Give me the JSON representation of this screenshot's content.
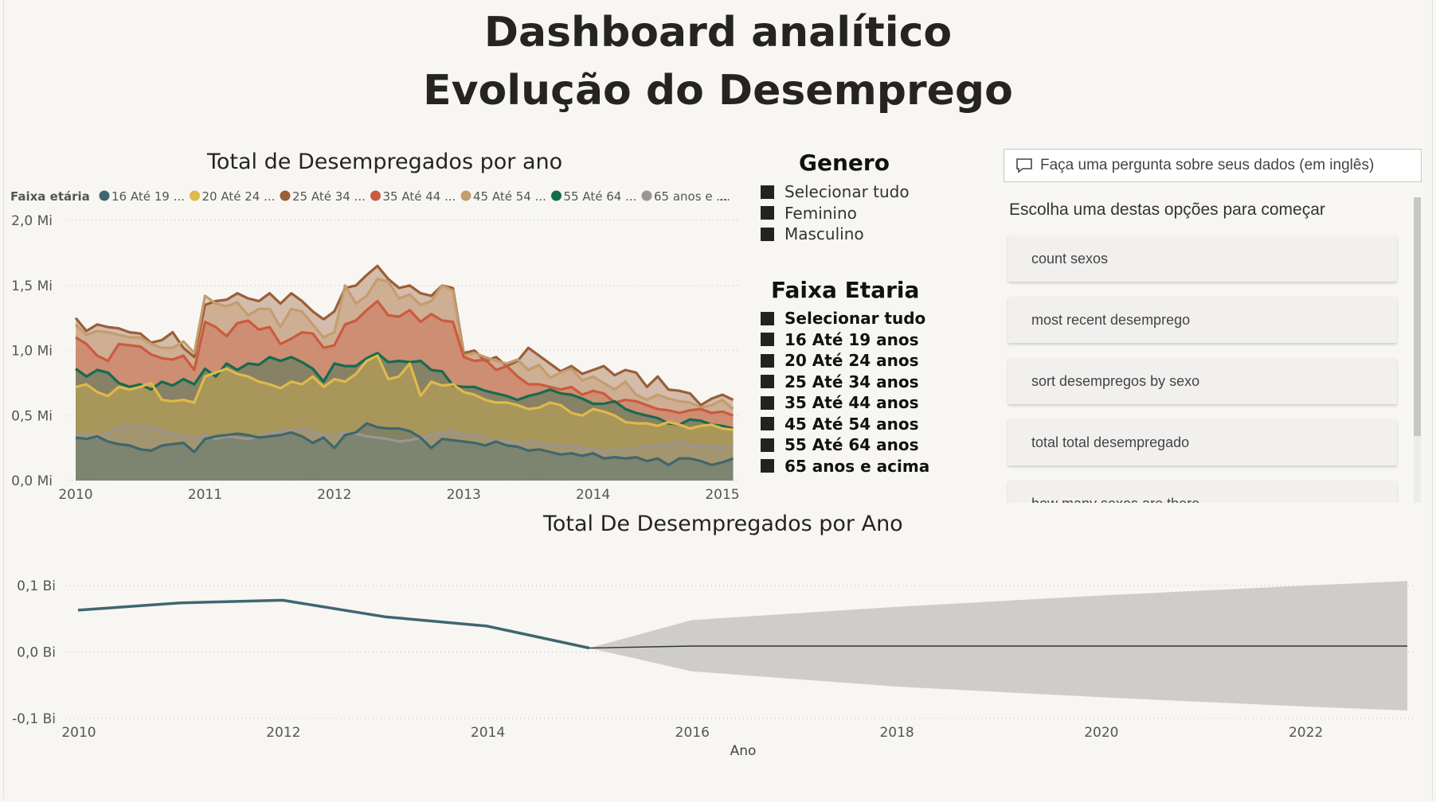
{
  "header": {
    "title_line1": "Dashboard analítico",
    "title_line2": "Evolução do Desemprego"
  },
  "colors": {
    "background": "#f7f6f2",
    "forecast_band": "#cfcdc9",
    "actual_line": "#3f6670"
  },
  "slicer_genero": {
    "title": "Genero",
    "items": [
      "Selecionar tudo",
      "Feminino",
      "Masculino"
    ]
  },
  "slicer_faixa": {
    "title": "Faixa Etaria",
    "items": [
      "Selecionar tudo",
      "16 Até 19 anos",
      "20 Até 24 anos",
      "25 Até 34 anos",
      "35 Até 44 anos",
      "45 Até 54 anos",
      "55 Até 64 anos",
      "65 anos e acima"
    ]
  },
  "qa": {
    "placeholder": "Faça uma pergunta sobre seus dados (em inglês)",
    "prompt": "Escolha uma destas opções para começar",
    "suggestions": [
      "count sexos",
      "most recent desemprego",
      "sort desempregos by sexo",
      "total total desempregado",
      "how many sexos are there"
    ]
  },
  "chart_data": [
    {
      "type": "area",
      "title": "Total de Desempregados por ano",
      "legend_title": "Faixa etária",
      "legend_position": "top",
      "xlabel": "",
      "ylabel": "",
      "xlim": [
        2010,
        2015
      ],
      "ylim": [
        0,
        2.0
      ],
      "y_ticks": [
        "0,0 Mi",
        "0,5 Mi",
        "1,0 Mi",
        "1,5 Mi",
        "2,0 Mi"
      ],
      "x_ticks": [
        "2010",
        "2011",
        "2012",
        "2013",
        "2014",
        "2015"
      ],
      "grid": true,
      "x": [
        2010.0,
        2010.083,
        2010.167,
        2010.25,
        2010.333,
        2010.417,
        2010.5,
        2010.583,
        2010.667,
        2010.75,
        2010.833,
        2010.917,
        2011.0,
        2011.083,
        2011.167,
        2011.25,
        2011.333,
        2011.417,
        2011.5,
        2011.583,
        2011.667,
        2011.75,
        2011.833,
        2011.917,
        2012.0,
        2012.083,
        2012.167,
        2012.25,
        2012.333,
        2012.417,
        2012.5,
        2012.583,
        2012.667,
        2012.75,
        2012.833,
        2012.917,
        2013.0,
        2013.083,
        2013.167,
        2013.25,
        2013.333,
        2013.417,
        2013.5,
        2013.583,
        2013.667,
        2013.75,
        2013.833,
        2013.917,
        2014.0,
        2014.083,
        2014.167,
        2014.25,
        2014.333,
        2014.417,
        2014.5,
        2014.583,
        2014.667,
        2014.75,
        2014.833,
        2014.917,
        2015.0,
        2015.083
      ],
      "series": [
        {
          "name": "16 Até 19 ...",
          "color": "#3f6670",
          "values": [
            0.33,
            0.32,
            0.34,
            0.3,
            0.28,
            0.27,
            0.24,
            0.23,
            0.27,
            0.28,
            0.29,
            0.22,
            0.32,
            0.34,
            0.35,
            0.36,
            0.35,
            0.33,
            0.34,
            0.35,
            0.37,
            0.34,
            0.29,
            0.33,
            0.25,
            0.35,
            0.37,
            0.44,
            0.41,
            0.4,
            0.4,
            0.38,
            0.33,
            0.25,
            0.32,
            0.31,
            0.3,
            0.29,
            0.27,
            0.3,
            0.27,
            0.26,
            0.23,
            0.24,
            0.22,
            0.2,
            0.21,
            0.19,
            0.21,
            0.17,
            0.18,
            0.17,
            0.18,
            0.15,
            0.17,
            0.12,
            0.17,
            0.17,
            0.15,
            0.12,
            0.14,
            0.17
          ]
        },
        {
          "name": "20 Até 24 ...",
          "color": "#e0b94a",
          "values": [
            0.72,
            0.74,
            0.68,
            0.65,
            0.72,
            0.7,
            0.72,
            0.75,
            0.62,
            0.61,
            0.62,
            0.6,
            0.8,
            0.83,
            0.86,
            0.82,
            0.8,
            0.76,
            0.74,
            0.71,
            0.76,
            0.74,
            0.8,
            0.72,
            0.78,
            0.76,
            0.82,
            0.92,
            0.96,
            0.78,
            0.8,
            0.9,
            0.65,
            0.76,
            0.73,
            0.74,
            0.68,
            0.66,
            0.62,
            0.6,
            0.6,
            0.58,
            0.55,
            0.56,
            0.6,
            0.58,
            0.52,
            0.5,
            0.55,
            0.53,
            0.5,
            0.45,
            0.44,
            0.44,
            0.42,
            0.45,
            0.43,
            0.4,
            0.42,
            0.43,
            0.4,
            0.39
          ]
        },
        {
          "name": "25 Até 34 ...",
          "color": "#9b5e37",
          "values": [
            1.25,
            1.15,
            1.2,
            1.18,
            1.17,
            1.14,
            1.13,
            1.06,
            1.08,
            1.14,
            1.02,
            0.95,
            1.35,
            1.38,
            1.39,
            1.44,
            1.4,
            1.38,
            1.44,
            1.36,
            1.44,
            1.38,
            1.3,
            1.24,
            1.3,
            1.48,
            1.5,
            1.58,
            1.65,
            1.55,
            1.48,
            1.5,
            1.44,
            1.42,
            1.5,
            1.48,
            0.98,
            1.0,
            0.92,
            0.95,
            0.88,
            0.92,
            1.02,
            0.96,
            0.9,
            0.84,
            0.88,
            0.82,
            0.85,
            0.88,
            0.81,
            0.85,
            0.83,
            0.72,
            0.8,
            0.7,
            0.69,
            0.67,
            0.58,
            0.63,
            0.66,
            0.62
          ]
        },
        {
          "name": "35 Até 44 ...",
          "color": "#cc5a3e",
          "values": [
            1.1,
            1.05,
            0.96,
            0.92,
            1.05,
            1.04,
            1.03,
            0.97,
            0.94,
            0.93,
            0.96,
            0.85,
            1.22,
            1.18,
            1.11,
            1.21,
            1.23,
            1.16,
            1.18,
            1.05,
            1.09,
            1.14,
            1.13,
            1.02,
            1.04,
            1.2,
            1.23,
            1.31,
            1.38,
            1.27,
            1.26,
            1.31,
            1.22,
            1.28,
            1.23,
            1.22,
            0.95,
            0.92,
            0.93,
            0.85,
            0.88,
            0.8,
            0.74,
            0.74,
            0.72,
            0.7,
            0.72,
            0.66,
            0.69,
            0.67,
            0.6,
            0.62,
            0.61,
            0.58,
            0.55,
            0.54,
            0.52,
            0.54,
            0.55,
            0.52,
            0.53,
            0.5
          ]
        },
        {
          "name": "45 Até 54 ...",
          "color": "#c49c6e",
          "values": [
            1.2,
            1.12,
            1.15,
            1.14,
            1.12,
            1.1,
            1.1,
            1.05,
            1.02,
            1.02,
            1.07,
            0.98,
            1.42,
            1.36,
            1.34,
            1.37,
            1.27,
            1.32,
            1.32,
            1.18,
            1.32,
            1.3,
            1.2,
            1.1,
            1.14,
            1.5,
            1.36,
            1.42,
            1.55,
            1.53,
            1.4,
            1.43,
            1.35,
            1.38,
            1.5,
            1.46,
            0.96,
            0.98,
            0.95,
            0.92,
            0.9,
            0.93,
            0.85,
            0.89,
            0.79,
            0.83,
            0.86,
            0.77,
            0.8,
            0.75,
            0.7,
            0.76,
            0.66,
            0.62,
            0.66,
            0.63,
            0.61,
            0.6,
            0.56,
            0.58,
            0.62,
            0.55
          ]
        },
        {
          "name": "55 Até 64 ...",
          "color": "#166b4f",
          "values": [
            0.86,
            0.8,
            0.85,
            0.83,
            0.75,
            0.72,
            0.74,
            0.7,
            0.76,
            0.73,
            0.78,
            0.74,
            0.86,
            0.8,
            0.9,
            0.85,
            0.9,
            0.89,
            0.95,
            0.92,
            0.95,
            0.91,
            0.86,
            0.76,
            0.9,
            0.88,
            0.88,
            0.94,
            0.98,
            0.91,
            0.92,
            0.91,
            0.92,
            0.85,
            0.84,
            0.73,
            0.72,
            0.72,
            0.69,
            0.67,
            0.65,
            0.62,
            0.65,
            0.67,
            0.7,
            0.67,
            0.66,
            0.63,
            0.59,
            0.59,
            0.61,
            0.55,
            0.52,
            0.5,
            0.48,
            0.44,
            0.43,
            0.47,
            0.46,
            0.43,
            0.42,
            0.4
          ]
        },
        {
          "name": "65 anos e ...",
          "color": "#9c9590",
          "values": [
            0.35,
            0.36,
            0.33,
            0.37,
            0.4,
            0.42,
            0.42,
            0.41,
            0.38,
            0.36,
            0.34,
            0.32,
            0.35,
            0.32,
            0.34,
            0.33,
            0.32,
            0.34,
            0.36,
            0.38,
            0.38,
            0.4,
            0.37,
            0.35,
            0.34,
            0.37,
            0.36,
            0.34,
            0.33,
            0.32,
            0.3,
            0.31,
            0.33,
            0.35,
            0.37,
            0.38,
            0.36,
            0.35,
            0.33,
            0.3,
            0.31,
            0.28,
            0.3,
            0.29,
            0.27,
            0.28,
            0.26,
            0.25,
            0.24,
            0.22,
            0.24,
            0.23,
            0.25,
            0.26,
            0.27,
            0.28,
            0.3,
            0.26,
            0.27,
            0.26,
            0.25,
            0.27
          ]
        }
      ]
    },
    {
      "type": "line",
      "title": "Total De Desempregados por Ano",
      "xlabel": "Ano",
      "ylabel": "",
      "xlim": [
        2010,
        2023
      ],
      "ylim": [
        -0.1,
        0.1
      ],
      "y_ticks": [
        "-0,1 Bi",
        "0,0 Bi",
        "0,1 Bi"
      ],
      "x_ticks": [
        "2010",
        "2012",
        "2014",
        "2016",
        "2018",
        "2020",
        "2022"
      ],
      "grid": true,
      "series": [
        {
          "name": "",
          "x": [
            2010,
            2011,
            2012,
            2013,
            2014,
            2015
          ],
          "values": [
            0.063,
            0.074,
            0.078,
            0.053,
            0.039,
            0.006
          ]
        }
      ],
      "forecast": {
        "x": [
          2015,
          2016,
          2018,
          2020,
          2022,
          2023
        ],
        "values": [
          0.006,
          0.009,
          0.009,
          0.009,
          0.009,
          0.009
        ],
        "upper": [
          0.006,
          0.048,
          0.068,
          0.085,
          0.1,
          0.107
        ],
        "lower": [
          0.006,
          -0.029,
          -0.052,
          -0.068,
          -0.082,
          -0.088
        ]
      }
    }
  ]
}
